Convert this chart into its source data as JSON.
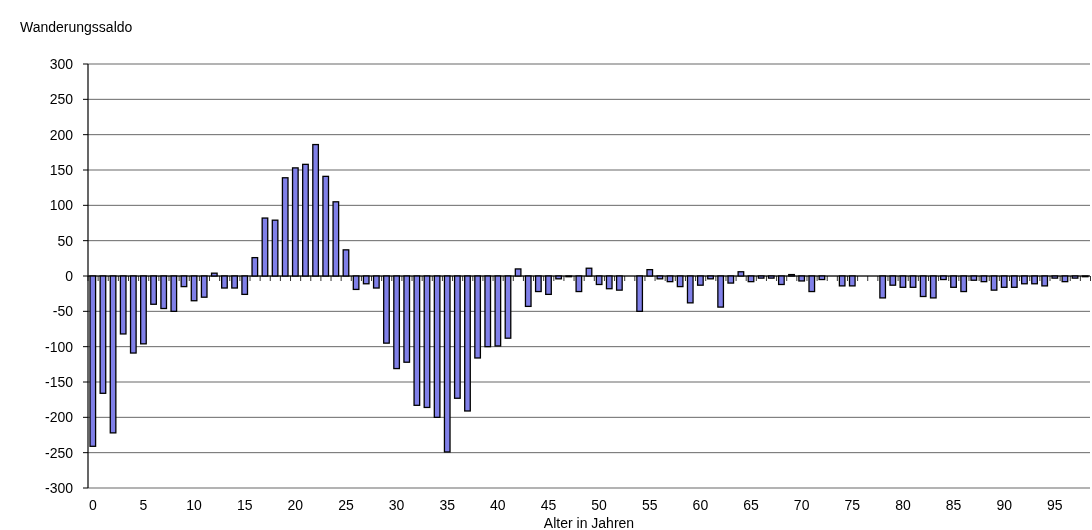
{
  "chart_data": {
    "type": "bar",
    "ylabel": "Wanderungssaldo",
    "xlabel": "Alter in Jahren",
    "categories": [
      "0",
      null,
      null,
      null,
      null,
      "5",
      null,
      null,
      null,
      null,
      "10",
      null,
      null,
      null,
      null,
      "15",
      null,
      null,
      null,
      null,
      "20",
      null,
      null,
      null,
      null,
      "25",
      null,
      null,
      null,
      null,
      "30",
      null,
      null,
      null,
      null,
      "35",
      null,
      null,
      null,
      null,
      "40",
      null,
      null,
      null,
      null,
      "45",
      null,
      null,
      null,
      null,
      "50",
      null,
      null,
      null,
      null,
      "55",
      null,
      null,
      null,
      null,
      "60",
      null,
      null,
      null,
      null,
      "65",
      null,
      null,
      null,
      null,
      "70",
      null,
      null,
      null,
      null,
      "75",
      null,
      null,
      null,
      null,
      "80",
      null,
      null,
      null,
      null,
      "85",
      null,
      null,
      null,
      null,
      "90",
      null,
      null,
      null,
      null,
      "95",
      null,
      null,
      null
    ],
    "values": [
      -241,
      -166,
      -222,
      -82,
      -109,
      -96,
      -40,
      -46,
      -50,
      -15,
      -35,
      -30,
      4,
      -17,
      -17,
      -26,
      26,
      82,
      79,
      139,
      153,
      158,
      186,
      141,
      105,
      37,
      -19,
      -11,
      -17,
      -95,
      -131,
      -122,
      -183,
      -186,
      -200,
      -249,
      -173,
      -191,
      -116,
      -100,
      -99,
      -88,
      10,
      -43,
      -22,
      -26,
      -4,
      -1,
      -22,
      11,
      -12,
      -18,
      -20,
      0,
      -50,
      9,
      -4,
      -8,
      -15,
      -38,
      -13,
      -4,
      -44,
      -10,
      6,
      -8,
      -3,
      -3,
      -12,
      2,
      -7,
      -22,
      -5,
      0,
      -14,
      -14,
      0,
      0,
      -31,
      -13,
      -16,
      -16,
      -29,
      -31,
      -5,
      -16,
      -22,
      -6,
      -8,
      -20,
      -16,
      -16,
      -11,
      -11,
      -14,
      -3,
      -8,
      -3,
      -1
    ],
    "color": "#8080e8",
    "ylim": [
      -300,
      300
    ],
    "yticks": [
      -300,
      -250,
      -200,
      -150,
      -100,
      -50,
      0,
      50,
      100,
      150,
      200,
      250,
      300
    ],
    "grid": "y"
  }
}
